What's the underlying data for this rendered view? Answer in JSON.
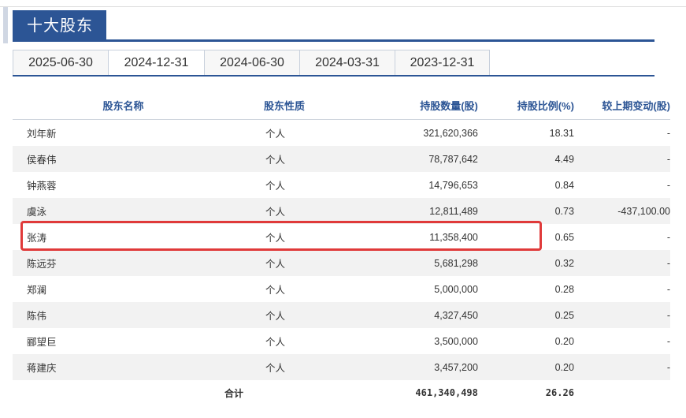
{
  "section": {
    "title": "十大股东"
  },
  "tabs": [
    {
      "label": "2025-06-30",
      "active": false
    },
    {
      "label": "2024-12-31",
      "active": true
    },
    {
      "label": "2024-06-30",
      "active": false
    },
    {
      "label": "2024-03-31",
      "active": false
    },
    {
      "label": "2023-12-31",
      "active": false
    }
  ],
  "table": {
    "headers": [
      "股东名称",
      "股东性质",
      "持股数量(股)",
      "持股比例(%)",
      "较上期变动(股)"
    ],
    "rows": [
      {
        "name": "刘年新",
        "type": "个人",
        "qty": "321,620,366",
        "ratio": "18.31",
        "change": "-"
      },
      {
        "name": "侯春伟",
        "type": "个人",
        "qty": "78,787,642",
        "ratio": "4.49",
        "change": "-"
      },
      {
        "name": "钟燕蓉",
        "type": "个人",
        "qty": "14,796,653",
        "ratio": "0.84",
        "change": "-"
      },
      {
        "name": "虞泳",
        "type": "个人",
        "qty": "12,811,489",
        "ratio": "0.73",
        "change": "-437,100.00"
      },
      {
        "name": "张涛",
        "type": "个人",
        "qty": "11,358,400",
        "ratio": "0.65",
        "change": "-"
      },
      {
        "name": "陈远芬",
        "type": "个人",
        "qty": "5,681,298",
        "ratio": "0.32",
        "change": "-"
      },
      {
        "name": "郑澜",
        "type": "个人",
        "qty": "5,000,000",
        "ratio": "0.28",
        "change": "-"
      },
      {
        "name": "陈伟",
        "type": "个人",
        "qty": "4,327,450",
        "ratio": "0.25",
        "change": "-"
      },
      {
        "name": "郦望巨",
        "type": "个人",
        "qty": "3,500,000",
        "ratio": "0.20",
        "change": "-"
      },
      {
        "name": "蒋建庆",
        "type": "个人",
        "qty": "3,457,200",
        "ratio": "0.20",
        "change": "-"
      }
    ],
    "total": {
      "label": "合计",
      "qty": "461,340,498",
      "ratio": "26.26"
    }
  },
  "highlight": {
    "row_name": "张涛",
    "color": "#e03a3a"
  },
  "colors": {
    "accent": "#2c5595"
  }
}
